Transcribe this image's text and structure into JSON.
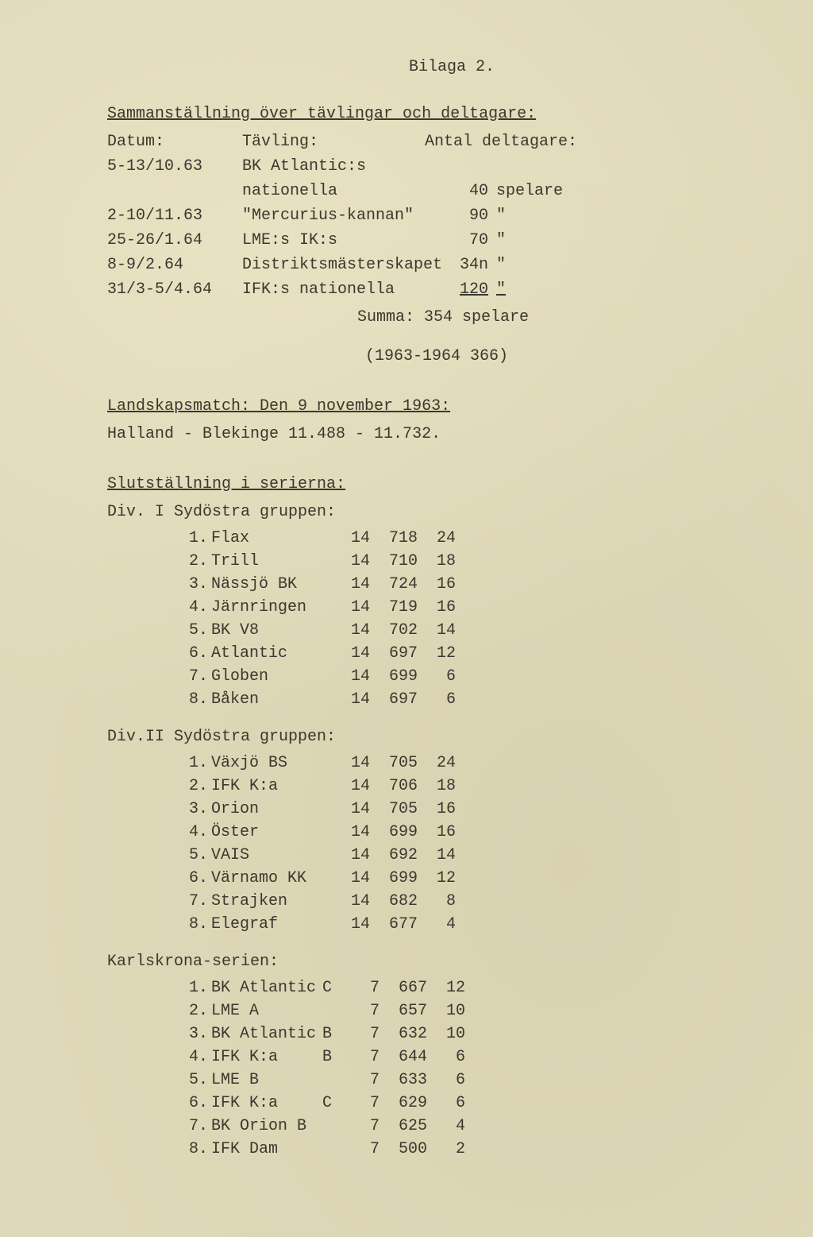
{
  "header": {
    "appendix": "Bilaga 2."
  },
  "competitions": {
    "title": "Sammanställning över tävlingar och deltagare:",
    "columns": {
      "date": "Datum:",
      "event": "Tävling:",
      "participants": "Antal deltagare:"
    },
    "rows": [
      {
        "date": "5-13/10.63",
        "event1": "BK Atlantic:s",
        "event2": "nationella",
        "count": "40",
        "unit": "spelare"
      },
      {
        "date": "2-10/11.63",
        "event1": "\"Mercurius-kannan\"",
        "event2": "",
        "count": "90",
        "unit": "\""
      },
      {
        "date": "25-26/1.64",
        "event1": "LME:s IK:s",
        "event2": "",
        "count": "70",
        "unit": "\""
      },
      {
        "date": "8-9/2.64",
        "event1": "Distriktsmästerskapet",
        "event2": "",
        "count": "34n",
        "unit": "\""
      },
      {
        "date": "31/3-5/4.64",
        "event1": "IFK:s nationella",
        "event2": "",
        "count": "120",
        "unit": "\""
      }
    ],
    "sum_label": "Summa:",
    "sum_value": "354 spelare",
    "prev_year": "(1963-1964 366)"
  },
  "landmatch": {
    "title": "Landskapsmatch:  Den 9 november 1963:",
    "line": "Halland    -    Blekinge    11.488 - 11.732."
  },
  "standings": {
    "title": "Slutställning i serierna:",
    "groups": [
      {
        "name": "Div. I Sydöstra gruppen:",
        "rows": [
          {
            "n": "1.",
            "team": "Flax",
            "g": "14",
            "s": "718",
            "p": "24"
          },
          {
            "n": "2.",
            "team": "Trill",
            "g": "14",
            "s": "710",
            "p": "18"
          },
          {
            "n": "3.",
            "team": "Nässjö BK",
            "g": "14",
            "s": "724",
            "p": "16"
          },
          {
            "n": "4.",
            "team": "Järnringen",
            "g": "14",
            "s": "719",
            "p": "16"
          },
          {
            "n": "5.",
            "team": "BK V8",
            "g": "14",
            "s": "702",
            "p": "14"
          },
          {
            "n": "6.",
            "team": "Atlantic",
            "g": "14",
            "s": "697",
            "p": "12"
          },
          {
            "n": "7.",
            "team": "Globen",
            "g": "14",
            "s": "699",
            "p": "6"
          },
          {
            "n": "8.",
            "team": "Båken",
            "g": "14",
            "s": "697",
            "p": "6"
          }
        ]
      },
      {
        "name": "Div.II Sydöstra gruppen:",
        "rows": [
          {
            "n": "1.",
            "team": "Växjö BS",
            "g": "14",
            "s": "705",
            "p": "24"
          },
          {
            "n": "2.",
            "team": "IFK K:a",
            "g": "14",
            "s": "706",
            "p": "18"
          },
          {
            "n": "3.",
            "team": "Orion",
            "g": "14",
            "s": "705",
            "p": "16"
          },
          {
            "n": "4.",
            "team": "Öster",
            "g": "14",
            "s": "699",
            "p": "16"
          },
          {
            "n": "5.",
            "team": "VAIS",
            "g": "14",
            "s": "692",
            "p": "14"
          },
          {
            "n": "6.",
            "team": "Värnamo KK",
            "g": "14",
            "s": "699",
            "p": "12"
          },
          {
            "n": "7.",
            "team": "Strajken",
            "g": "14",
            "s": "682",
            "p": "8"
          },
          {
            "n": "8.",
            "team": "Elegraf",
            "g": "14",
            "s": "677",
            "p": "4"
          }
        ]
      }
    ],
    "karlskrona": {
      "name": "Karlskrona-serien:",
      "rows": [
        {
          "n": "1.",
          "team": "BK Atlantic",
          "ext": "C",
          "g": "7",
          "s": "667",
          "p": "12"
        },
        {
          "n": "2.",
          "team": "LME  A",
          "ext": "",
          "g": "7",
          "s": "657",
          "p": "10"
        },
        {
          "n": "3.",
          "team": "BK Atlantic",
          "ext": "B",
          "g": "7",
          "s": "632",
          "p": "10"
        },
        {
          "n": "4.",
          "team": "IFK K:a",
          "ext": "B",
          "g": "7",
          "s": "644",
          "p": "6"
        },
        {
          "n": "5.",
          "team": "LME  B",
          "ext": "",
          "g": "7",
          "s": "633",
          "p": "6"
        },
        {
          "n": "6.",
          "team": "IFK K:a",
          "ext": "C",
          "g": "7",
          "s": "629",
          "p": "6"
        },
        {
          "n": "7.",
          "team": "BK Orion B",
          "ext": "",
          "g": "7",
          "s": "625",
          "p": "4"
        },
        {
          "n": "8.",
          "team": "IFK Dam",
          "ext": "",
          "g": "7",
          "s": "500",
          "p": "2"
        }
      ]
    }
  }
}
